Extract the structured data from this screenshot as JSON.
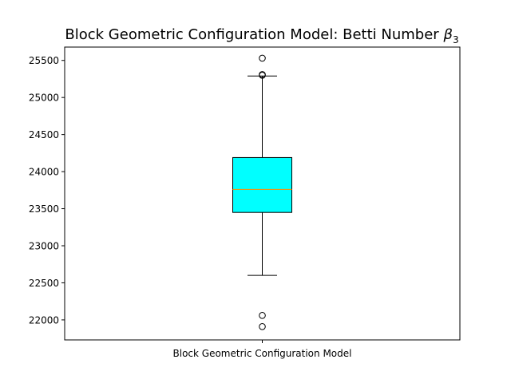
{
  "chart_data": {
    "type": "box",
    "title": "Block Geometric Configuration Model: Betti Number",
    "title_symbol": "β",
    "title_subscript": "3",
    "categories": [
      "Block Geometric Configuration Model"
    ],
    "ylim": [
      21730,
      25680
    ],
    "y_ticks": [
      22000,
      22500,
      23000,
      23500,
      24000,
      24500,
      25000,
      25500
    ],
    "grid": false,
    "box": {
      "q1": 23450,
      "median": 23760,
      "q3": 24190,
      "whisker_low": 22600,
      "whisker_high": 25290,
      "outliers": [
        25530,
        25310,
        25300,
        22060,
        21910
      ]
    },
    "colors": {
      "box_fill": "#00ffff",
      "median_line": "#ff8c00",
      "lines": "#000000"
    }
  }
}
